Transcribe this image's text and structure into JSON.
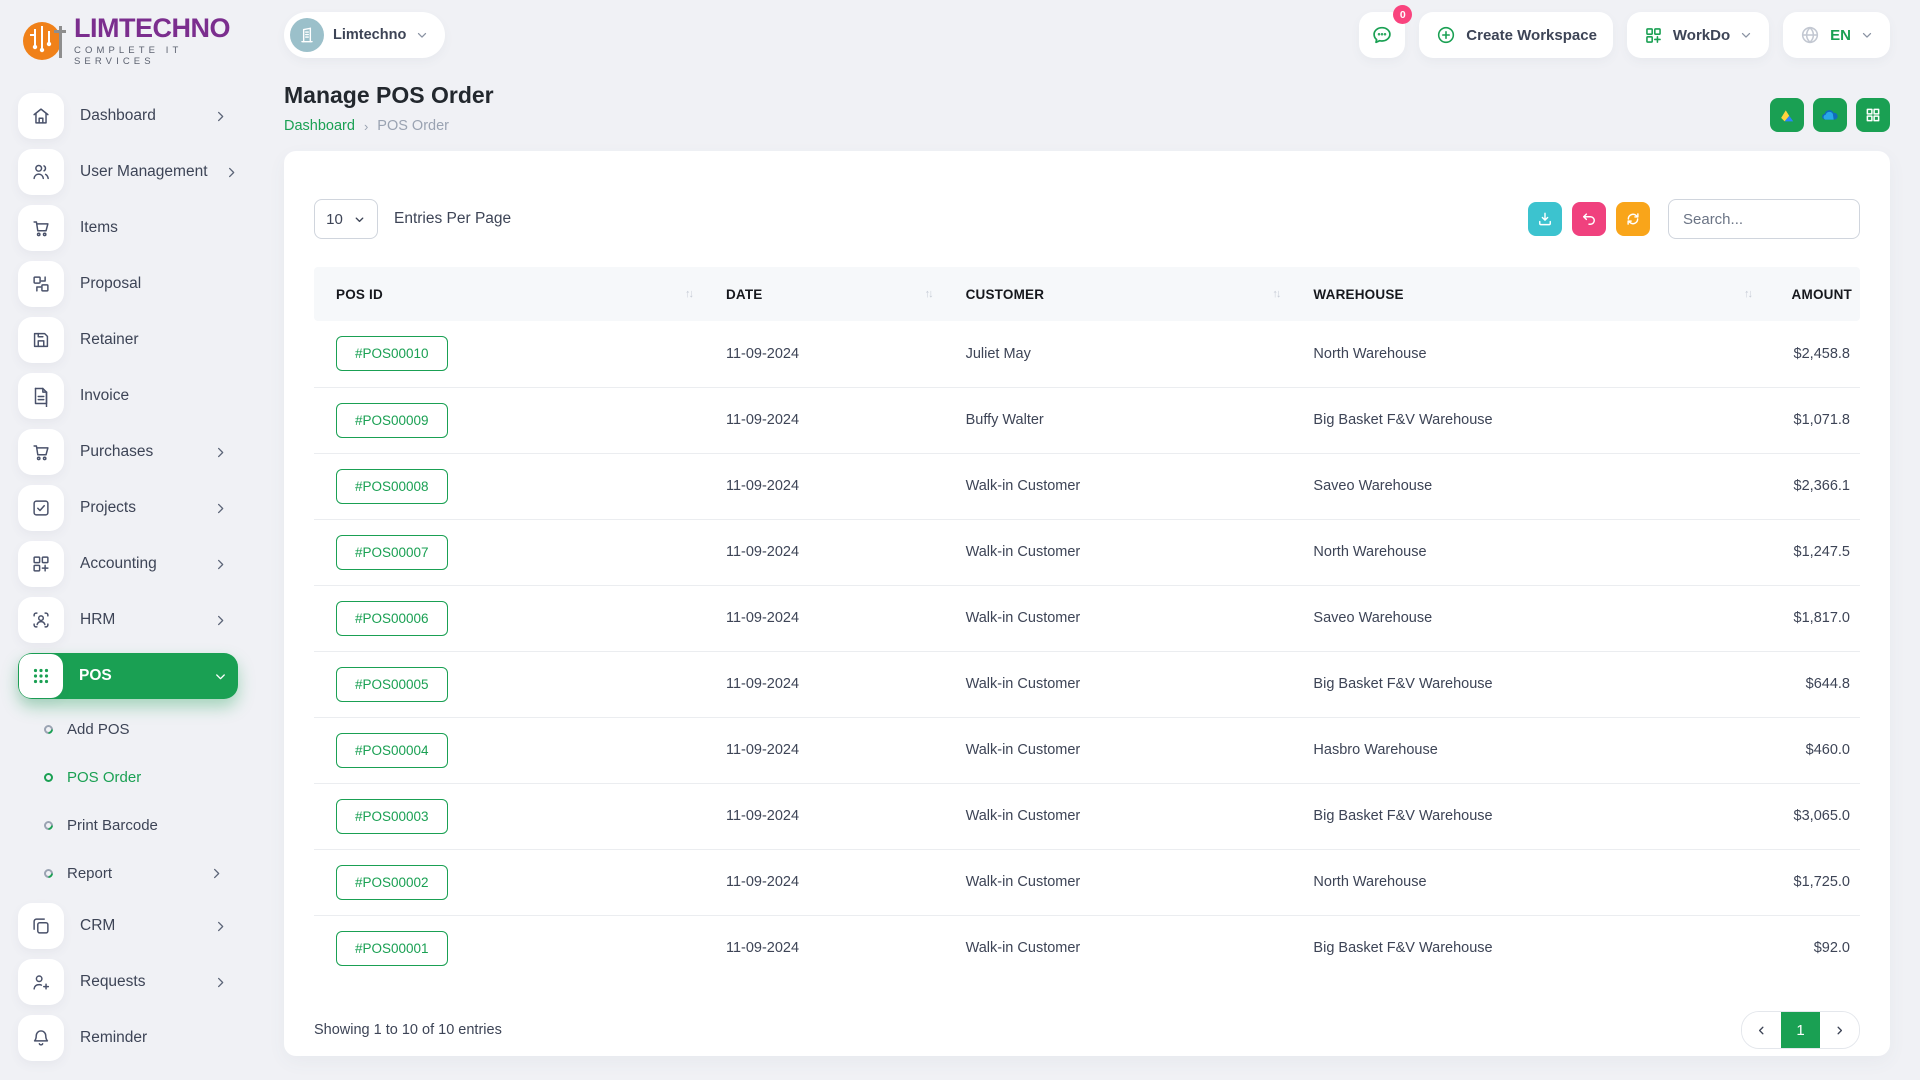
{
  "brand": {
    "name": "LIMTECHNO",
    "tagline": "COMPLETE IT SERVICES"
  },
  "topbar": {
    "workspace_name": "Limtechno",
    "chat_badge": "0",
    "create_workspace_label": "Create Workspace",
    "workdo_label": "WorkDo",
    "language_label": "EN"
  },
  "sidebar": {
    "items_top": [
      {
        "label": "Dashboard",
        "icon": "home-icon",
        "chevron": true
      },
      {
        "label": "User Management",
        "icon": "users-icon",
        "chevron": true
      },
      {
        "label": "Items",
        "icon": "cart-icon",
        "chevron": false
      },
      {
        "label": "Proposal",
        "icon": "swap-boxes-icon",
        "chevron": false
      },
      {
        "label": "Retainer",
        "icon": "save-icon",
        "chevron": false
      },
      {
        "label": "Invoice",
        "icon": "document-icon",
        "chevron": false
      },
      {
        "label": "Purchases",
        "icon": "cart-icon",
        "chevron": true
      },
      {
        "label": "Projects",
        "icon": "check-square-icon",
        "chevron": true
      },
      {
        "label": "Accounting",
        "icon": "grid-plus-icon",
        "chevron": true
      },
      {
        "label": "HRM",
        "icon": "user-scan-icon",
        "chevron": true
      },
      {
        "label": "POS",
        "icon": "grid-dots-icon",
        "chevron": "down",
        "active": true
      }
    ],
    "pos_submenu": [
      {
        "label": "Add POS",
        "active": false,
        "chevron": false
      },
      {
        "label": "POS Order",
        "active": true,
        "chevron": false
      },
      {
        "label": "Print Barcode",
        "active": false,
        "chevron": false
      },
      {
        "label": "Report",
        "active": false,
        "chevron": true
      }
    ],
    "items_bottom": [
      {
        "label": "CRM",
        "icon": "copy-icon",
        "chevron": true
      },
      {
        "label": "Requests",
        "icon": "user-plus-icon",
        "chevron": true
      },
      {
        "label": "Reminder",
        "icon": "bell-icon",
        "chevron": false
      }
    ]
  },
  "page": {
    "title": "Manage POS Order",
    "breadcrumb_home": "Dashboard",
    "breadcrumb_current": "POS Order"
  },
  "toolbar": {
    "entries_value": "10",
    "entries_label": "Entries Per Page",
    "search_placeholder": "Search..."
  },
  "table": {
    "columns": [
      "POS ID",
      "DATE",
      "CUSTOMER",
      "WAREHOUSE",
      "AMOUNT"
    ],
    "rows": [
      {
        "pos_id": "#POS00010",
        "date": "11-09-2024",
        "customer": "Juliet May",
        "warehouse": "North Warehouse",
        "amount": "$2,458.8"
      },
      {
        "pos_id": "#POS00009",
        "date": "11-09-2024",
        "customer": "Buffy Walter",
        "warehouse": "Big Basket F&V Warehouse",
        "amount": "$1,071.8"
      },
      {
        "pos_id": "#POS00008",
        "date": "11-09-2024",
        "customer": "Walk-in Customer",
        "warehouse": "Saveo Warehouse",
        "amount": "$2,366.1"
      },
      {
        "pos_id": "#POS00007",
        "date": "11-09-2024",
        "customer": "Walk-in Customer",
        "warehouse": "North Warehouse",
        "amount": "$1,247.5"
      },
      {
        "pos_id": "#POS00006",
        "date": "11-09-2024",
        "customer": "Walk-in Customer",
        "warehouse": "Saveo Warehouse",
        "amount": "$1,817.0"
      },
      {
        "pos_id": "#POS00005",
        "date": "11-09-2024",
        "customer": "Walk-in Customer",
        "warehouse": "Big Basket F&V Warehouse",
        "amount": "$644.8"
      },
      {
        "pos_id": "#POS00004",
        "date": "11-09-2024",
        "customer": "Walk-in Customer",
        "warehouse": "Hasbro Warehouse",
        "amount": "$460.0"
      },
      {
        "pos_id": "#POS00003",
        "date": "11-09-2024",
        "customer": "Walk-in Customer",
        "warehouse": "Big Basket F&V Warehouse",
        "amount": "$3,065.0"
      },
      {
        "pos_id": "#POS00002",
        "date": "11-09-2024",
        "customer": "Walk-in Customer",
        "warehouse": "North Warehouse",
        "amount": "$1,725.0"
      },
      {
        "pos_id": "#POS00001",
        "date": "11-09-2024",
        "customer": "Walk-in Customer",
        "warehouse": "Big Basket F&V Warehouse",
        "amount": "$92.0"
      }
    ]
  },
  "footer": {
    "showing_text": "Showing 1 to 10 of 10 entries",
    "current_page": "1"
  },
  "colors": {
    "accent_green": "#1aa053",
    "logo_purple": "#7b2e8e",
    "logo_orange": "#f08119",
    "teal_button": "#3cc3cf",
    "pink_button": "#f0417e",
    "orange_button": "#f9a51a",
    "badge_red": "#f9437e"
  }
}
